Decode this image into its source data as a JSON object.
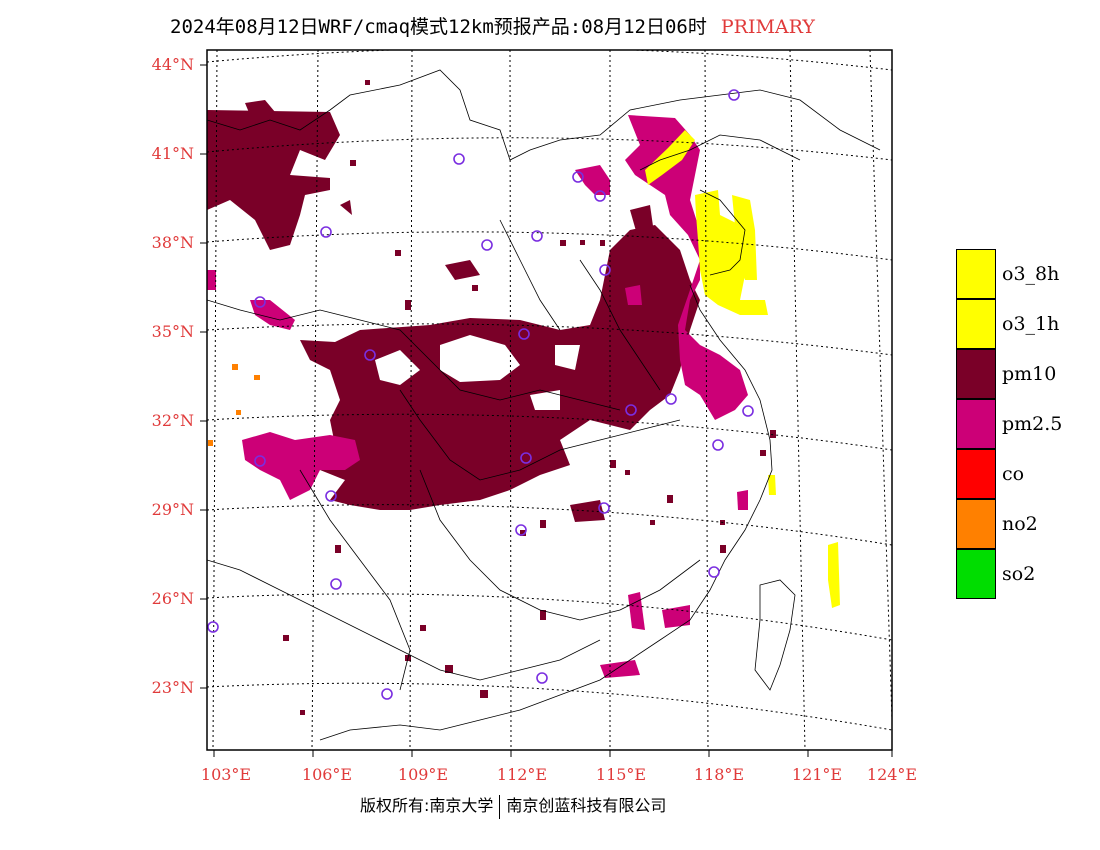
{
  "title": {
    "text": "2024年08月12日WRF/cmaq模式12km预报产品:08月12日06时",
    "tag": "PRIMARY"
  },
  "lat_labels": [
    "44°N",
    "41°N",
    "38°N",
    "35°N",
    "32°N",
    "29°N",
    "26°N",
    "23°N"
  ],
  "lon_labels": [
    "103°E",
    "106°E",
    "109°E",
    "112°E",
    "115°E",
    "118°E",
    "121°E",
    "124°E"
  ],
  "legend": [
    {
      "label": "o3_8h",
      "color": "#ffff00"
    },
    {
      "label": "o3_1h",
      "color": "#ffff00"
    },
    {
      "label": "pm10",
      "color": "#7a0028"
    },
    {
      "label": "pm2.5",
      "color": "#cc0077"
    },
    {
      "label": "co",
      "color": "#ff0000"
    },
    {
      "label": "no2",
      "color": "#ff8000"
    },
    {
      "label": "so2",
      "color": "#00dd00"
    }
  ],
  "footer": {
    "left": "版权所有:南京大学",
    "right": "南京创蓝科技有限公司"
  },
  "colors": {
    "accent_text": "#e03a3a",
    "pm10": "#7a0028",
    "pm25": "#cc0077",
    "o3": "#ffff00",
    "station_marker": "#7a2ee0"
  }
}
